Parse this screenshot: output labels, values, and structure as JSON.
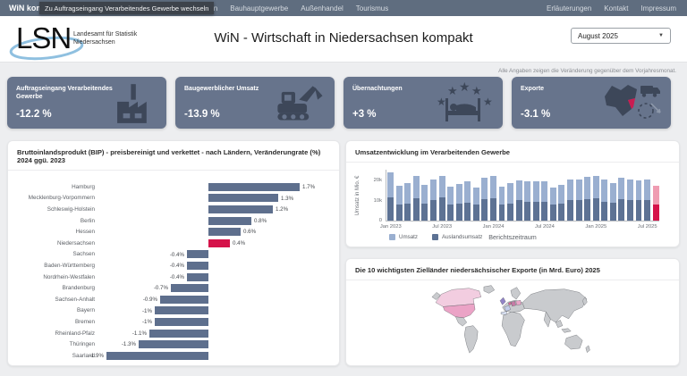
{
  "nav": {
    "brand": "WiN kompakt",
    "tooltip": "Zu Auftragseingang Verarbeitendes Gewerbe wechseln",
    "items": [
      "…ungen",
      "Bauhauptgewerbe",
      "Außenhandel",
      "Tourismus"
    ],
    "right_items": [
      "Erläuterungen",
      "Kontakt",
      "Impressum"
    ]
  },
  "header": {
    "logo": "LSN",
    "logo_caption_1": "Landesamt für Statistik",
    "logo_caption_2": "Niedersachsen",
    "title": "WiN - Wirtschaft in Niedersachsen kompakt",
    "period": "August 2025"
  },
  "note": "Alle Angaben zeigen die Veränderung gegenüber dem Vorjahresmonat.",
  "kpis": [
    {
      "label": "Auftragseingang Verarbeitendes Gewerbe",
      "value": "-12.2 %",
      "icon": "factory-icon"
    },
    {
      "label": "Baugewerblicher Umsatz",
      "value": "-13.9 %",
      "icon": "excavator-icon"
    },
    {
      "label": "Übernachtungen",
      "value": "+3 %",
      "icon": "hotel-bed-icon"
    },
    {
      "label": "Exporte",
      "value": "-3.1 %",
      "icon": "export-map-truck-icon"
    }
  ],
  "colors": {
    "nav_bg": "#5f6d7f",
    "kpi_bg": "#67748c",
    "icon_dark": "#3d4759",
    "accent_red": "#d5134a"
  },
  "chart_data": [
    {
      "type": "bar",
      "orientation": "horizontal",
      "title": "Bruttoinlandsprodukt (BIP) - preisbereinigt und verkettet - nach Ländern, Veränderungrate (%) 2024 ggü. 2023",
      "categories": [
        "Hamburg",
        "Mecklenburg-Vorpommern",
        "Schleswig-Holstein",
        "Berlin",
        "Hessen",
        "Niedersachsen",
        "Sachsen",
        "Baden-Württemberg",
        "Nordrhein-Westfalen",
        "Brandenburg",
        "Sachsen-Anhalt",
        "Bayern",
        "Bremen",
        "Rheinland-Pfalz",
        "Thüringen",
        "Saarland"
      ],
      "values": [
        1.7,
        1.3,
        1.2,
        0.8,
        0.6,
        0.4,
        -0.4,
        -0.4,
        -0.4,
        -0.7,
        -0.9,
        -1,
        -1,
        -1.1,
        -1.3,
        -1.9
      ],
      "labels": [
        "1.7%",
        "1.3%",
        "1.2%",
        "0.8%",
        "0.6%",
        "0.4%",
        "-0.4%",
        "-0.4%",
        "-0.4%",
        "-0.7%",
        "-0.9%",
        "-1%",
        "-1%",
        "-1.1%",
        "-1.3%",
        "-1.9%"
      ],
      "highlight_category": "Niedersachsen",
      "bar_color": "#5e6f8d",
      "highlight_color": "#d5134a",
      "xlim": [
        -2.0,
        2.0
      ],
      "grid": false
    },
    {
      "type": "bar",
      "stacked": true,
      "title": "Umsatzentwicklung im Verarbeitenden Gewerbe",
      "xlabel": "Berichtszeitraum",
      "ylabel": "Umsatz in Mio. €",
      "ylim": [
        0,
        26000
      ],
      "yticks": [
        {
          "label": "0",
          "value": 0
        },
        {
          "label": "10k",
          "value": 10000
        },
        {
          "label": "20k",
          "value": 20000
        }
      ],
      "xticks": [
        {
          "label": "Jan 2023",
          "index": 0
        },
        {
          "label": "Jul 2023",
          "index": 6
        },
        {
          "label": "Jan 2024",
          "index": 12
        },
        {
          "label": "Jul 2024",
          "index": 18
        },
        {
          "label": "Jan 2025",
          "index": 24
        },
        {
          "label": "Jul 2025",
          "index": 30
        }
      ],
      "x": [
        "Jan 2023",
        "Feb 2023",
        "Mär 2023",
        "Apr 2023",
        "Mai 2023",
        "Jun 2023",
        "Jul 2023",
        "Aug 2023",
        "Sep 2023",
        "Okt 2023",
        "Nov 2023",
        "Dez 2023",
        "Jan 2024",
        "Feb 2024",
        "Mär 2024",
        "Apr 2024",
        "Mai 2024",
        "Jun 2024",
        "Jul 2024",
        "Aug 2024",
        "Sep 2024",
        "Okt 2024",
        "Nov 2024",
        "Dez 2024",
        "Jan 2025",
        "Feb 2025",
        "Mär 2025",
        "Apr 2025",
        "Mai 2025",
        "Jun 2025",
        "Jul 2025",
        "Aug 2025"
      ],
      "series": [
        {
          "name": "Umsatz",
          "color": "#9aafd0",
          "values": [
            24000,
            17600,
            18700,
            22300,
            17900,
            20600,
            22400,
            17100,
            18600,
            19600,
            16600,
            21400,
            22500,
            17200,
            18700,
            20100,
            19600,
            19600,
            19700,
            16700,
            18100,
            20600,
            20500,
            21900,
            22400,
            20600,
            18700,
            21600,
            20500,
            20100,
            20600,
            17400
          ]
        },
        {
          "name": "Auslandsumsatz",
          "color": "#5d7294",
          "values": [
            11600,
            8100,
            8700,
            11100,
            8600,
            10100,
            11600,
            8100,
            8700,
            9100,
            8100,
            10600,
            11100,
            8100,
            8700,
            10100,
            9600,
            9600,
            9600,
            8100,
            8600,
            10100,
            10100,
            10600,
            11100,
            9600,
            9100,
            10600,
            10100,
            10100,
            10100,
            8100
          ]
        }
      ],
      "highlight_last": true,
      "highlight_colors": {
        "umsatz": "#ef9cb2",
        "auslandsumsatz": "#d5134a"
      },
      "legend_position": "bottom-left",
      "grid": false
    },
    {
      "type": "map",
      "title": "Die 10 wichtigsten Zielländer niedersächsischer Exporte (in Mrd. Euro) 2025",
      "base_color": "#c9cbce",
      "border_color": "#5a5d63",
      "highlights": {
        "canada": "#f2cde0",
        "usa": "#eba3c6",
        "uk": "#9183c6",
        "france": "#c3cdea",
        "spain": "#d6deef",
        "netherlands": "#e0679a",
        "central_europe": "#c77ba6",
        "poland": "#eaa6c8"
      }
    }
  ]
}
